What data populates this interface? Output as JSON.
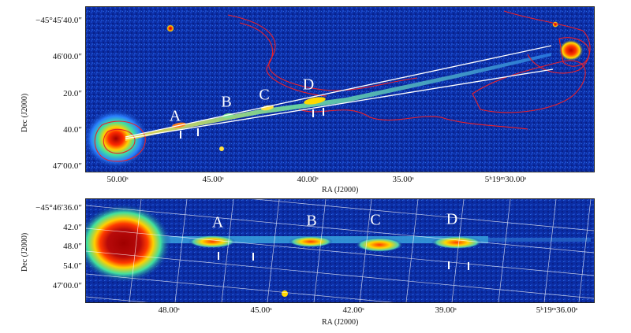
{
  "top_panel": {
    "y_axis_title": "Dec (J2000)",
    "x_axis_title": "RA (J2000)",
    "y_ticks": [
      "−45°45′40.0″",
      "46′00.0″",
      "20.0″",
      "40.0″",
      "47′00.0″"
    ],
    "x_ticks": [
      "50.00ˢ",
      "45.00ˢ",
      "40.00ˢ",
      "35.00ˢ",
      "5ʰ19ᵐ30.00ˢ"
    ],
    "knot_labels": [
      "A",
      "B",
      "C",
      "D"
    ]
  },
  "bottom_panel": {
    "y_axis_title": "Dec (J2000)",
    "x_axis_title": "RA (J2000)",
    "y_ticks": [
      "−45°46′36.0″",
      "42.0″",
      "48.0″",
      "54.0″",
      "47′00.0″"
    ],
    "x_ticks": [
      "48.00ˢ",
      "45.00ˢ",
      "42.00ˢ",
      "39.00ˢ",
      "5ʰ19ᵐ36.00ˢ"
    ],
    "knot_labels": [
      "A",
      "B",
      "C",
      "D"
    ]
  },
  "colors": {
    "background_sky": "#0a2a9c",
    "contours": "#e8202a",
    "core": "#b80a0a",
    "jet_bright": "#e0e020",
    "grid": "#ffffff"
  }
}
